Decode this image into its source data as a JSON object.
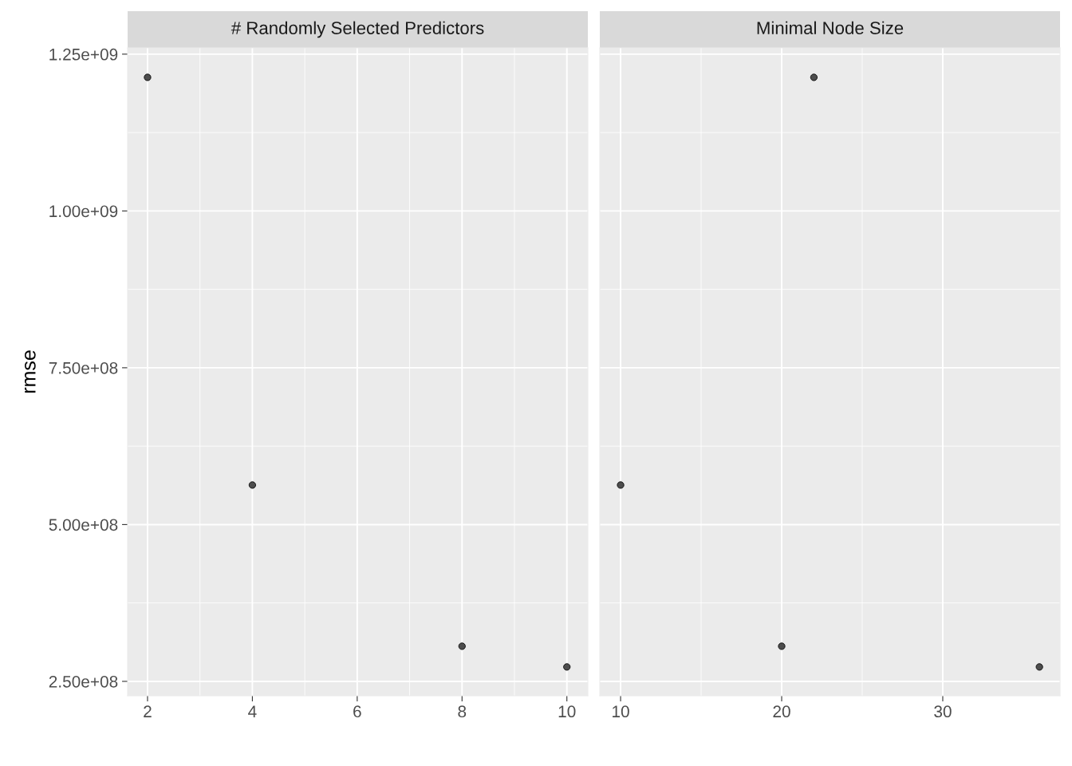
{
  "chart_data": [
    {
      "type": "scatter",
      "title": "# Randomly Selected Predictors",
      "ylabel": "rmse",
      "x": [
        2,
        4,
        8,
        10
      ],
      "values": [
        1213000000,
        563000000,
        306000000,
        273000000
      ],
      "color": "#4d4d4d",
      "marker": "circle",
      "grid": true,
      "legend": false,
      "xlim": [
        1.62,
        10.4
      ],
      "xticks": [
        2,
        4,
        6,
        8,
        10
      ],
      "ylim": [
        227000000,
        1260000000
      ],
      "yticks": [
        {
          "value": 250000000,
          "label": "2.50e+08"
        },
        {
          "value": 500000000,
          "label": "5.00e+08"
        },
        {
          "value": 750000000,
          "label": "7.50e+08"
        },
        {
          "value": 1000000000,
          "label": "1.00e+09"
        },
        {
          "value": 1250000000,
          "label": "1.25e+09"
        }
      ]
    },
    {
      "type": "scatter",
      "title": "Minimal Node Size",
      "x": [
        10,
        20,
        22,
        36
      ],
      "values": [
        563000000,
        306000000,
        1213000000,
        273000000
      ],
      "color": "#4d4d4d",
      "marker": "circle",
      "grid": true,
      "legend": false,
      "tick_labels": "x",
      "xlim": [
        8.71,
        37.28
      ],
      "xticks": [
        10,
        20,
        30
      ],
      "ylim": [
        227000000,
        1260000000
      ],
      "yticks": [
        250000000,
        500000000,
        750000000,
        1000000000,
        1250000000
      ]
    }
  ]
}
